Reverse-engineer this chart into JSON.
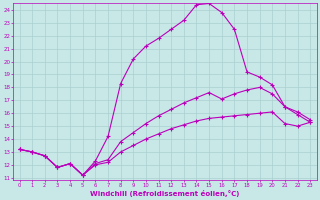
{
  "xlabel": "Windchill (Refroidissement éolien,°C)",
  "bg_color": "#c8e8e8",
  "grid_color": "#aacfcf",
  "line_color": "#bb00bb",
  "x_min": 0,
  "x_max": 23,
  "y_min": 11,
  "y_max": 24,
  "line_big_x": [
    0,
    1,
    2,
    3,
    4,
    5,
    6,
    7,
    8,
    9,
    10,
    11,
    12,
    13,
    14,
    15,
    16,
    17,
    18,
    19,
    20,
    21,
    22,
    23
  ],
  "line_big_y": [
    13.2,
    13.0,
    12.7,
    11.8,
    12.1,
    11.2,
    12.3,
    14.2,
    18.3,
    20.2,
    21.2,
    21.8,
    22.5,
    23.2,
    24.4,
    24.5,
    23.8,
    22.5,
    19.2,
    18.8,
    18.2,
    16.5,
    15.9,
    15.3
  ],
  "line_mid_x": [
    0,
    1,
    2,
    3,
    4,
    5,
    6,
    7,
    8,
    9,
    10,
    11,
    12,
    13,
    14,
    15,
    16,
    17,
    18,
    19,
    20,
    21,
    22,
    23
  ],
  "line_mid_y": [
    13.2,
    13.0,
    12.7,
    11.8,
    12.1,
    11.2,
    12.1,
    12.4,
    13.8,
    14.5,
    15.2,
    15.8,
    16.3,
    16.8,
    17.2,
    17.6,
    17.1,
    17.5,
    17.8,
    18.0,
    17.5,
    16.5,
    16.1,
    15.5
  ],
  "line_bot_x": [
    0,
    1,
    2,
    3,
    4,
    5,
    6,
    7,
    8,
    9,
    10,
    11,
    12,
    13,
    14,
    15,
    16,
    17,
    18,
    19,
    20,
    21,
    22,
    23
  ],
  "line_bot_y": [
    13.2,
    13.0,
    12.7,
    11.8,
    12.1,
    11.2,
    12.0,
    12.2,
    13.0,
    13.5,
    14.0,
    14.4,
    14.8,
    15.1,
    15.4,
    15.6,
    15.7,
    15.8,
    15.9,
    16.0,
    16.1,
    15.2,
    15.0,
    15.3
  ],
  "yticks": [
    11,
    12,
    13,
    14,
    15,
    16,
    17,
    18,
    19,
    20,
    21,
    22,
    23,
    24
  ],
  "xticks": [
    0,
    1,
    2,
    3,
    4,
    5,
    6,
    7,
    8,
    9,
    10,
    11,
    12,
    13,
    14,
    15,
    16,
    17,
    18,
    19,
    20,
    21,
    22,
    23
  ]
}
